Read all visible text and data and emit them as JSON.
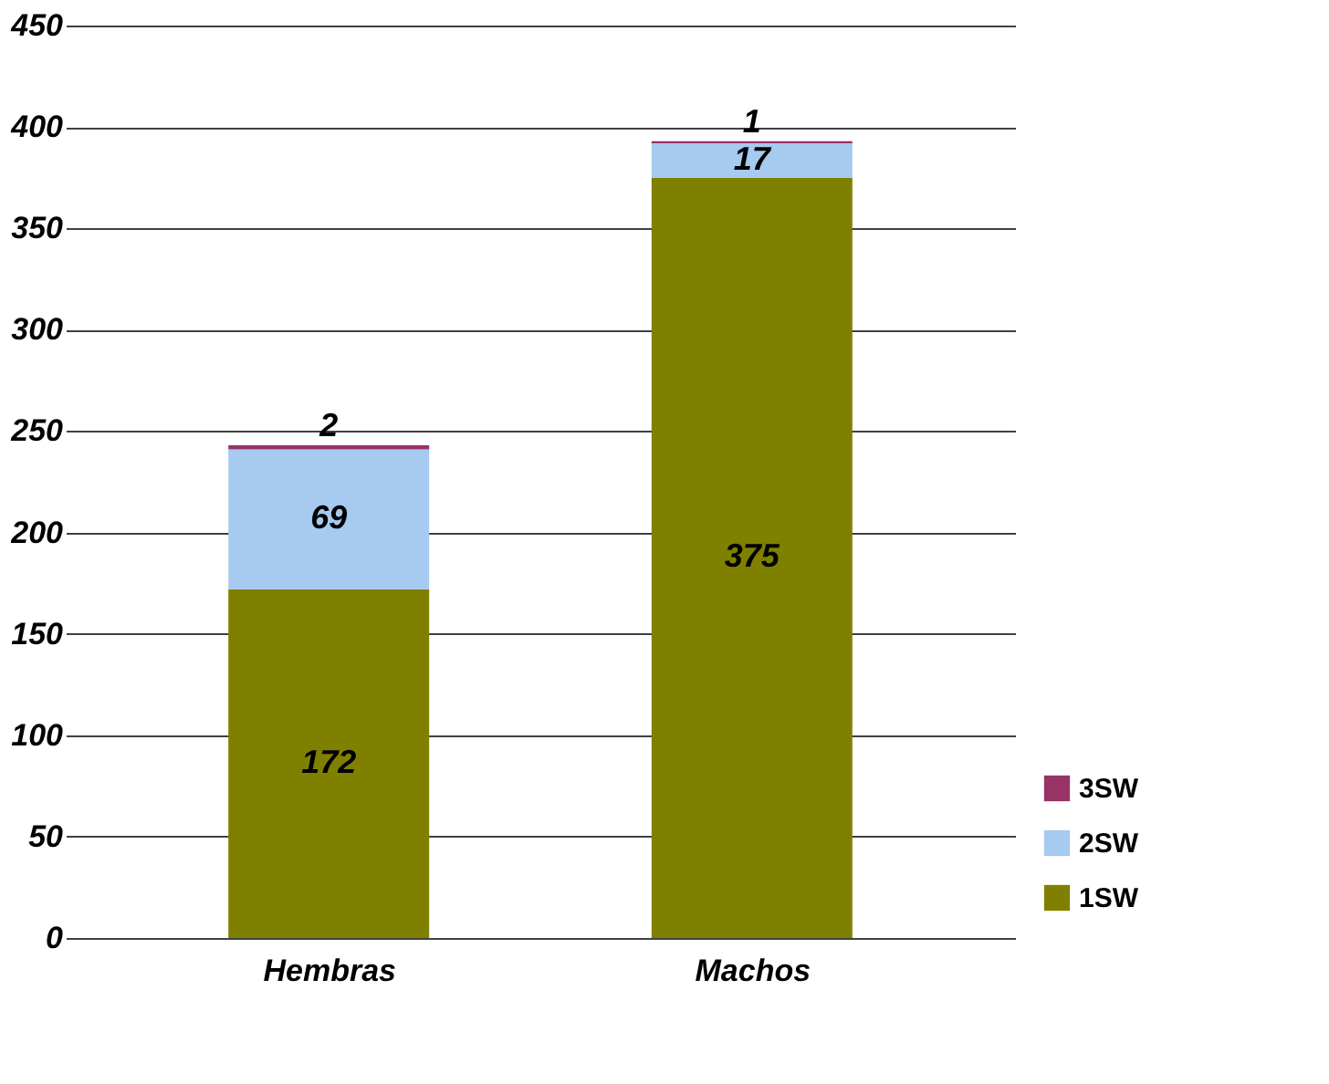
{
  "chart_data": {
    "type": "bar",
    "stacked": true,
    "categories": [
      "Hembras",
      "Machos"
    ],
    "series": [
      {
        "name": "1SW",
        "color": "#808000",
        "values": [
          172,
          375
        ]
      },
      {
        "name": "2SW",
        "color": "#a6caf0",
        "values": [
          69,
          17
        ]
      },
      {
        "name": "3SW",
        "color": "#993366",
        "values": [
          2,
          1
        ]
      }
    ],
    "ylim": [
      0,
      450
    ],
    "yticks": [
      0,
      50,
      100,
      150,
      200,
      250,
      300,
      350,
      400,
      450
    ],
    "grid": "y",
    "legend": "right",
    "data_labels": true
  }
}
